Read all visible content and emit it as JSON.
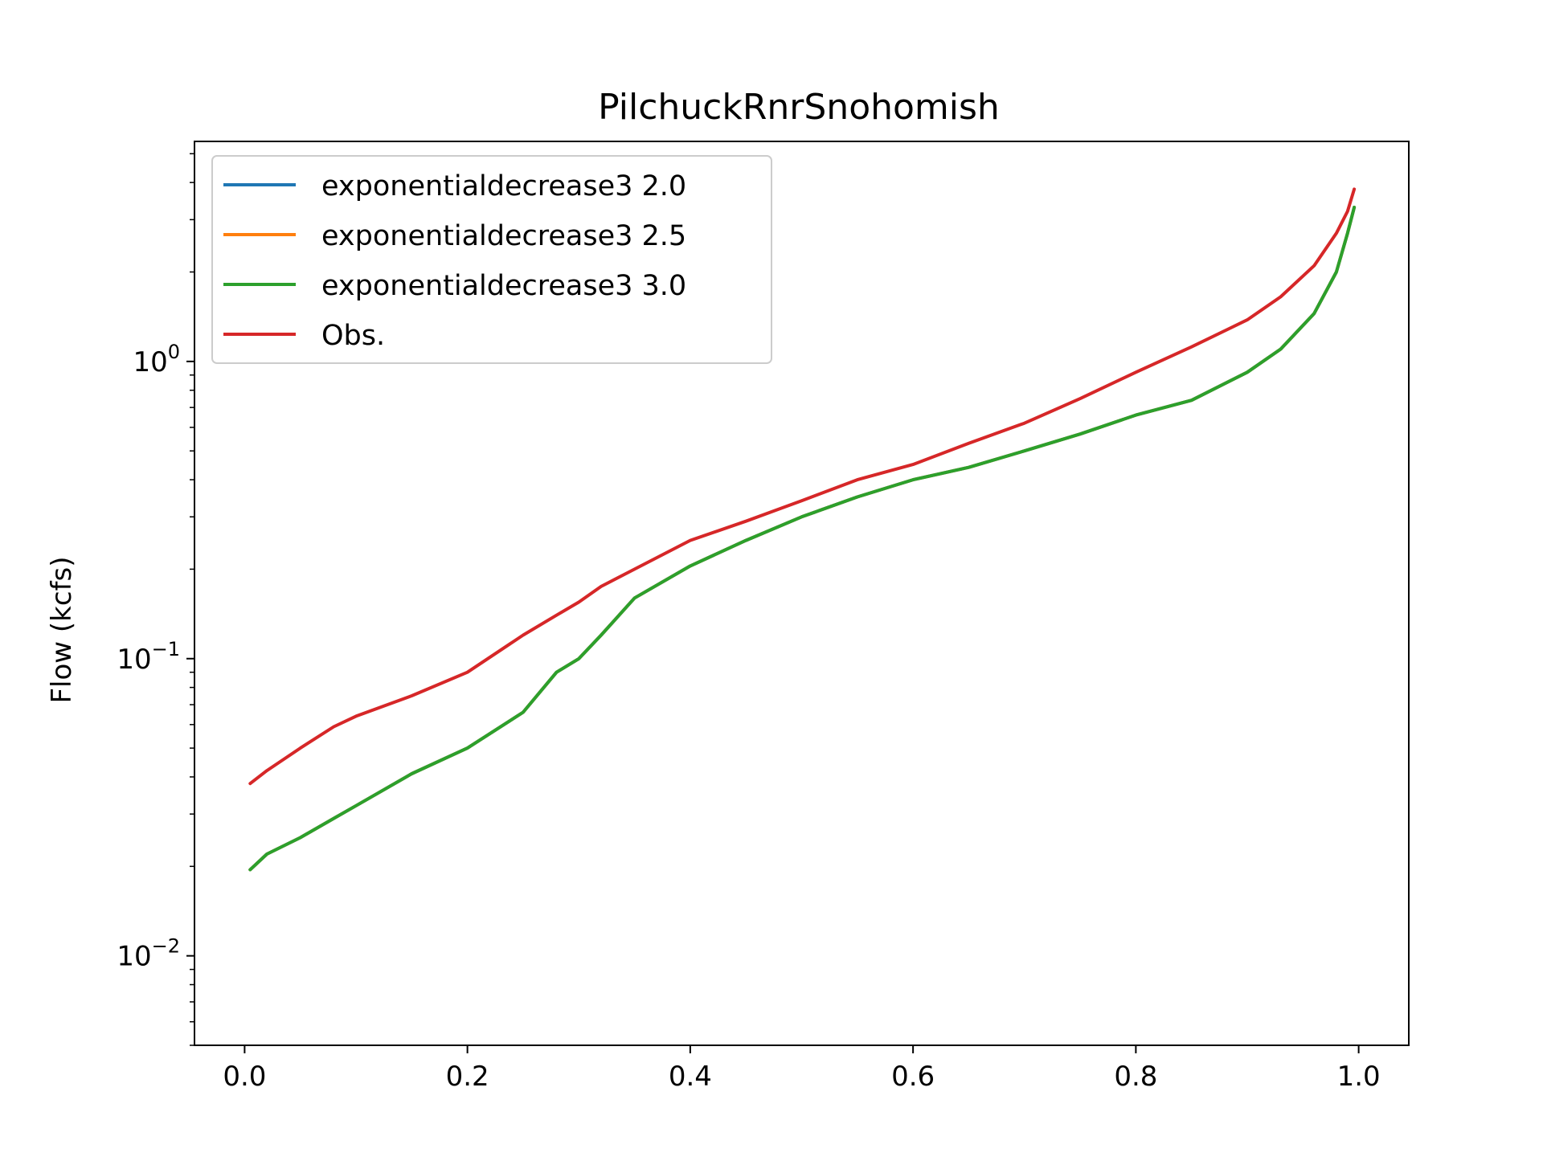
{
  "chart_data": {
    "type": "line",
    "title": "PilchuckRnrSnohomish",
    "xlabel": "",
    "ylabel": "Flow (kcfs)",
    "xlim": [
      -0.045,
      1.045
    ],
    "ylim": [
      0.005,
      5.5
    ],
    "yscale": "log",
    "grid": false,
    "legend_position": "top-left",
    "x_ticks": [
      0.0,
      0.2,
      0.4,
      0.6,
      0.8,
      1.0
    ],
    "x_tick_labels": [
      "0.0",
      "0.2",
      "0.4",
      "0.6",
      "0.8",
      "1.0"
    ],
    "y_ticks": [
      0.01,
      0.1,
      1.0
    ],
    "y_tick_labels": [
      {
        "base": "10",
        "exp": "−2"
      },
      {
        "base": "10",
        "exp": "−1"
      },
      {
        "base": "10",
        "exp": "0"
      }
    ],
    "x": [
      0.005,
      0.02,
      0.05,
      0.08,
      0.1,
      0.15,
      0.2,
      0.25,
      0.28,
      0.3,
      0.32,
      0.35,
      0.4,
      0.45,
      0.5,
      0.55,
      0.6,
      0.65,
      0.7,
      0.75,
      0.8,
      0.85,
      0.9,
      0.93,
      0.96,
      0.98,
      0.99,
      0.996
    ],
    "series": [
      {
        "name": "exponentialdecrease3 2.0",
        "color": "#1f77b4",
        "values": [
          0.0195,
          0.022,
          0.025,
          0.029,
          0.032,
          0.041,
          0.05,
          0.066,
          0.09,
          0.1,
          0.12,
          0.16,
          0.205,
          0.25,
          0.3,
          0.35,
          0.4,
          0.44,
          0.5,
          0.57,
          0.66,
          0.74,
          0.92,
          1.1,
          1.45,
          2.0,
          2.7,
          3.3
        ]
      },
      {
        "name": "exponentialdecrease3 2.5",
        "color": "#ff7f0e",
        "values": [
          0.0195,
          0.022,
          0.025,
          0.029,
          0.032,
          0.041,
          0.05,
          0.066,
          0.09,
          0.1,
          0.12,
          0.16,
          0.205,
          0.25,
          0.3,
          0.35,
          0.4,
          0.44,
          0.5,
          0.57,
          0.66,
          0.74,
          0.92,
          1.1,
          1.45,
          2.0,
          2.7,
          3.3
        ]
      },
      {
        "name": "exponentialdecrease3 3.0",
        "color": "#2ca02c",
        "values": [
          0.0195,
          0.022,
          0.025,
          0.029,
          0.032,
          0.041,
          0.05,
          0.066,
          0.09,
          0.1,
          0.12,
          0.16,
          0.205,
          0.25,
          0.3,
          0.35,
          0.4,
          0.44,
          0.5,
          0.57,
          0.66,
          0.74,
          0.92,
          1.1,
          1.45,
          2.0,
          2.7,
          3.3
        ]
      },
      {
        "name": "Obs.",
        "color": "#d62728",
        "values": [
          0.038,
          0.042,
          0.05,
          0.059,
          0.064,
          0.075,
          0.09,
          0.12,
          0.14,
          0.155,
          0.175,
          0.2,
          0.25,
          0.29,
          0.34,
          0.4,
          0.45,
          0.53,
          0.62,
          0.75,
          0.92,
          1.12,
          1.38,
          1.65,
          2.1,
          2.7,
          3.2,
          3.8
        ]
      }
    ]
  }
}
